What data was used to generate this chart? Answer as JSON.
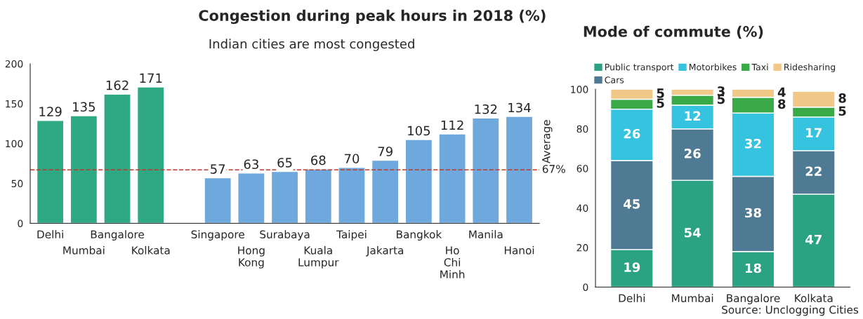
{
  "chart_data": [
    {
      "type": "bar",
      "title": "Congestion during peak hours in 2018 (%)",
      "subtitle": "Indian cities are most congested",
      "categories": [
        "Delhi",
        "Mumbai",
        "Bangalore",
        "Kolkata",
        null,
        "Singapore",
        "Hong Kong",
        "Surabaya",
        "Kuala Lumpur",
        "Taipei",
        "Jakarta",
        "Bangkok",
        "Ho Chi Minh",
        "Manila",
        "Hanoi"
      ],
      "values": [
        129,
        135,
        162,
        171,
        null,
        57,
        63,
        65,
        68,
        70,
        79,
        105,
        112,
        132,
        134
      ],
      "colors": [
        "#2fa884",
        "#2fa884",
        "#2fa884",
        "#2fa884",
        "#2fa884",
        "#6fa8dc",
        "#6fa8dc",
        "#6fa8dc",
        "#6fa8dc",
        "#6fa8dc",
        "#6fa8dc",
        "#6fa8dc",
        "#6fa8dc",
        "#6fa8dc",
        "#6fa8dc"
      ],
      "ylim": [
        0,
        200
      ],
      "yticks": [
        0,
        50,
        100,
        150,
        200
      ],
      "data_labels": true,
      "grid": false,
      "legend": false,
      "ref_lines": [
        {
          "axis": "y",
          "value": 67,
          "label": "Average",
          "color": "#c0392b",
          "line_style": "dashed"
        }
      ],
      "annotations": [
        "67%"
      ]
    },
    {
      "type": "bar",
      "title": "Mode of commute (%)",
      "stacked": true,
      "categories": [
        "Delhi",
        "Mumbai",
        "Bangalore",
        "Kolkata"
      ],
      "series": [
        {
          "name": "Public transport",
          "color": "#2ba383",
          "values": [
            19,
            54,
            18,
            47
          ]
        },
        {
          "name": "Cars",
          "color": "#4f7a94",
          "values": [
            45,
            26,
            38,
            22
          ]
        },
        {
          "name": "Motorbikes",
          "color": "#36c3e0",
          "values": [
            26,
            12,
            32,
            17
          ]
        },
        {
          "name": "Taxi",
          "color": "#3aaa48",
          "values": [
            5,
            5,
            8,
            5
          ]
        },
        {
          "name": "Ridesharing",
          "color": "#f2c889",
          "values": [
            5,
            3,
            4,
            8
          ]
        }
      ],
      "ylim": [
        0,
        100
      ],
      "yticks": [
        0,
        20,
        40,
        60,
        80,
        100
      ],
      "data_labels": true,
      "grid": false,
      "legend": "top",
      "annotations": [
        "Source: Unclogging Cities"
      ]
    }
  ]
}
